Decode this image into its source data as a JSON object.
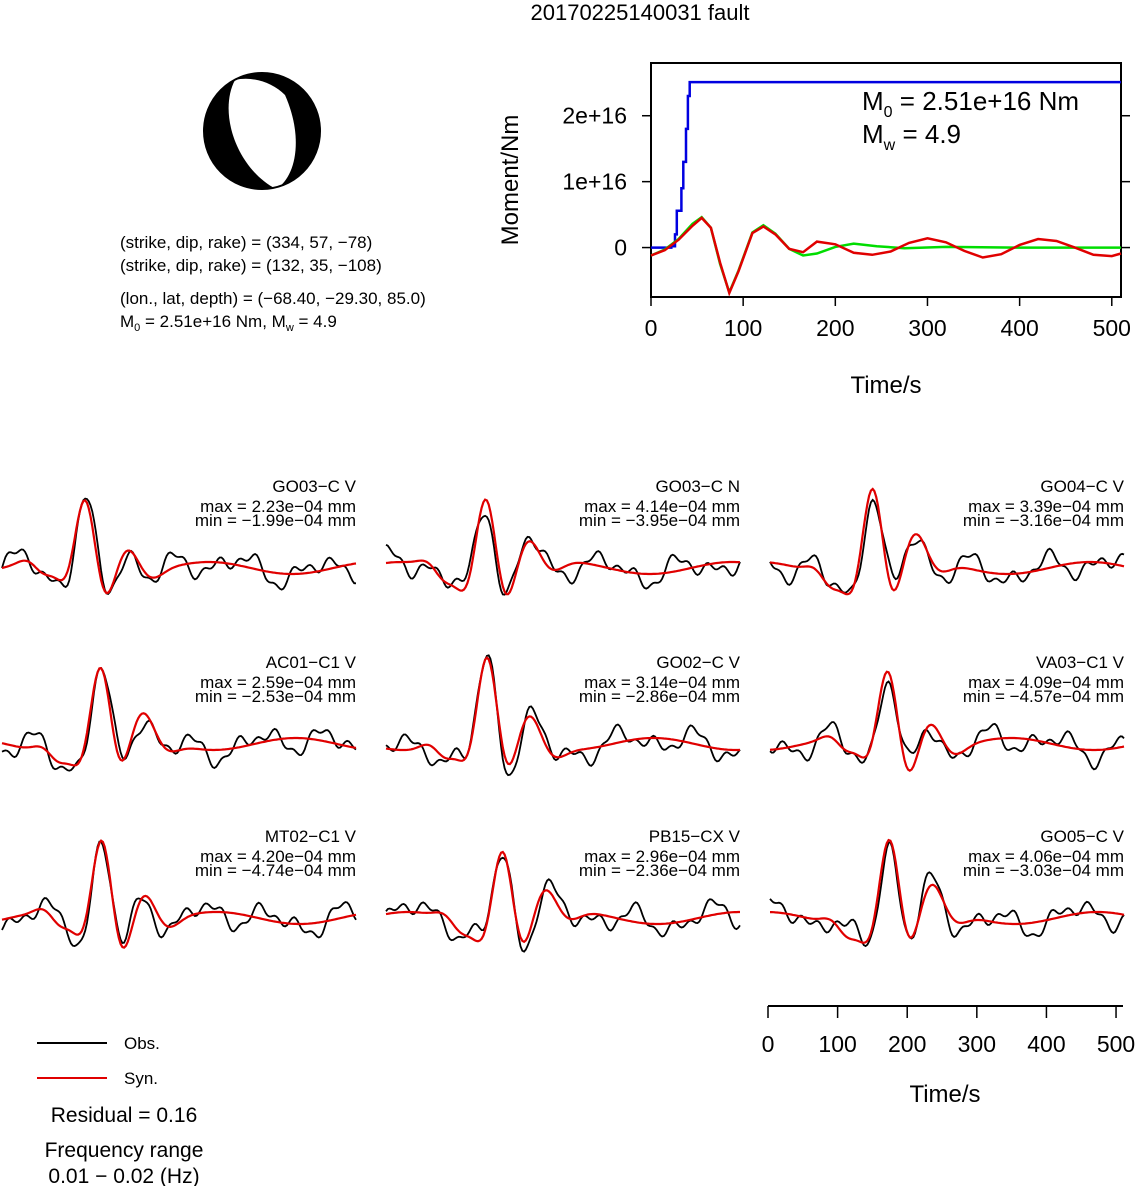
{
  "title": "20170225140031 fault",
  "mechanism": {
    "plane1": "(strike, dip, rake) = (334, 57, −78)",
    "plane2": "(strike, dip, rake) = (132, 35, −108)",
    "location": "(lon., lat, depth) = (−68.40, −29.30, 85.0)",
    "moment_prefix": "M",
    "moment_sub": "0",
    "moment_text": " = 2.51e+16 Nm, M",
    "moment_sub2": "w",
    "moment_text2": " = 4.9"
  },
  "legend": {
    "obs_label": "Obs.",
    "syn_label": "Syn.",
    "obs_color": "#000000",
    "syn_color": "#e00000"
  },
  "residual": "Residual = 0.16",
  "freq_title": "Frequency range",
  "freq_range": "0.01 − 0.02 (Hz)",
  "chart_data": [
    {
      "type": "line",
      "ylabel": "Moment/Nm",
      "xlabel": "Time/s",
      "xlim": [
        0,
        510
      ],
      "ylim": [
        -7500000000000000.0,
        2.8e+16
      ],
      "xticks": [
        0,
        100,
        200,
        300,
        400,
        500
      ],
      "yticks": [
        0,
        1e+16,
        2e+16
      ],
      "ytick_labels": [
        "0",
        "1e+16",
        "2e+16"
      ],
      "annotation_m0": " = 2.51e+16 Nm",
      "annotation_mw": " = 4.9",
      "series": [
        {
          "color": "#0000e0",
          "kind": "step",
          "x": [
            0,
            18,
            22,
            26,
            28,
            33,
            35,
            38,
            40,
            42,
            510
          ],
          "y": [
            0,
            0,
            200000000000000.0,
            2000000000000000.0,
            5600000000000000.0,
            9000000000000000.0,
            1.3e+16,
            1.8e+16,
            2.3e+16,
            2.51e+16,
            2.51e+16
          ]
        },
        {
          "color": "#00dd00",
          "x": [
            0,
            15,
            30,
            45,
            55,
            65,
            75,
            85,
            95,
            110,
            122,
            135,
            150,
            165,
            180,
            200,
            220,
            245,
            275,
            320,
            400,
            510
          ],
          "y": [
            -1200000000000000.0,
            -300000000000000.0,
            1300000000000000.0,
            3600000000000000.0,
            4600000000000000.0,
            3000000000000000.0,
            -2500000000000000.0,
            -6800000000000000.0,
            -3500000000000000.0,
            2300000000000000.0,
            3400000000000000.0,
            2100000000000000.0,
            -200000000000000.0,
            -1200000000000000.0,
            -900000000000000.0,
            100000000000000.0,
            600000000000000.0,
            200000000000000.0,
            -100000000000000.0,
            100000000000000.0,
            0,
            0
          ]
        },
        {
          "color": "#e00000",
          "x": [
            0,
            15,
            30,
            45,
            55,
            65,
            75,
            85,
            95,
            110,
            122,
            135,
            150,
            165,
            180,
            200,
            220,
            240,
            260,
            280,
            300,
            320,
            340,
            360,
            380,
            400,
            420,
            440,
            460,
            480,
            500,
            510
          ],
          "y": [
            -1200000000000000.0,
            -400000000000000.0,
            1200000000000000.0,
            3300000000000000.0,
            4500000000000000.0,
            3000000000000000.0,
            -2300000000000000.0,
            -6900000000000000.0,
            -3600000000000000.0,
            2200000000000000.0,
            3200000000000000.0,
            2000000000000000.0,
            -200000000000000.0,
            -700000000000000.0,
            900000000000000.0,
            500000000000000.0,
            -800000000000000.0,
            -1100000000000000.0,
            -600000000000000.0,
            700000000000000.0,
            1400000000000000.0,
            800000000000000.0,
            -500000000000000.0,
            -1500000000000000.0,
            -1000000000000000.0,
            400000000000000.0,
            1300000000000000.0,
            1000000000000000.0,
            0,
            -1100000000000000.0,
            -1300000000000000.0,
            -900000000000000.0
          ]
        }
      ]
    },
    {
      "type": "line",
      "xlabel": "Time/s",
      "xlim": [
        0,
        510
      ],
      "xticks": [
        0,
        100,
        200,
        300,
        400,
        500
      ],
      "traces": [
        {
          "station": "GO03−C V",
          "max": "max = 2.23e−04 mm",
          "min": "min = −1.99e−04 mm"
        },
        {
          "station": "GO03−C N",
          "max": "max = 4.14e−04 mm",
          "min": "min = −3.95e−04 mm"
        },
        {
          "station": "GO04−C V",
          "max": "max = 3.39e−04 mm",
          "min": "min = −3.16e−04 mm"
        },
        {
          "station": "AC01−C1 V",
          "max": "max = 2.59e−04 mm",
          "min": "min = −2.53e−04 mm"
        },
        {
          "station": "GO02−C V",
          "max": "max = 3.14e−04 mm",
          "min": "min = −2.86e−04 mm"
        },
        {
          "station": "VA03−C1 V",
          "max": "max = 4.09e−04 mm",
          "min": "min = −4.57e−04 mm"
        },
        {
          "station": "MT02−C1 V",
          "max": "max = 4.20e−04 mm",
          "min": "min = −4.74e−04 mm"
        },
        {
          "station": "PB15−CX V",
          "max": "max = 2.96e−04 mm",
          "min": "min = −2.36e−04 mm"
        },
        {
          "station": "GO05−C V",
          "max": "max = 4.06e−04 mm",
          "min": "min = −3.03e−04 mm"
        }
      ]
    }
  ]
}
